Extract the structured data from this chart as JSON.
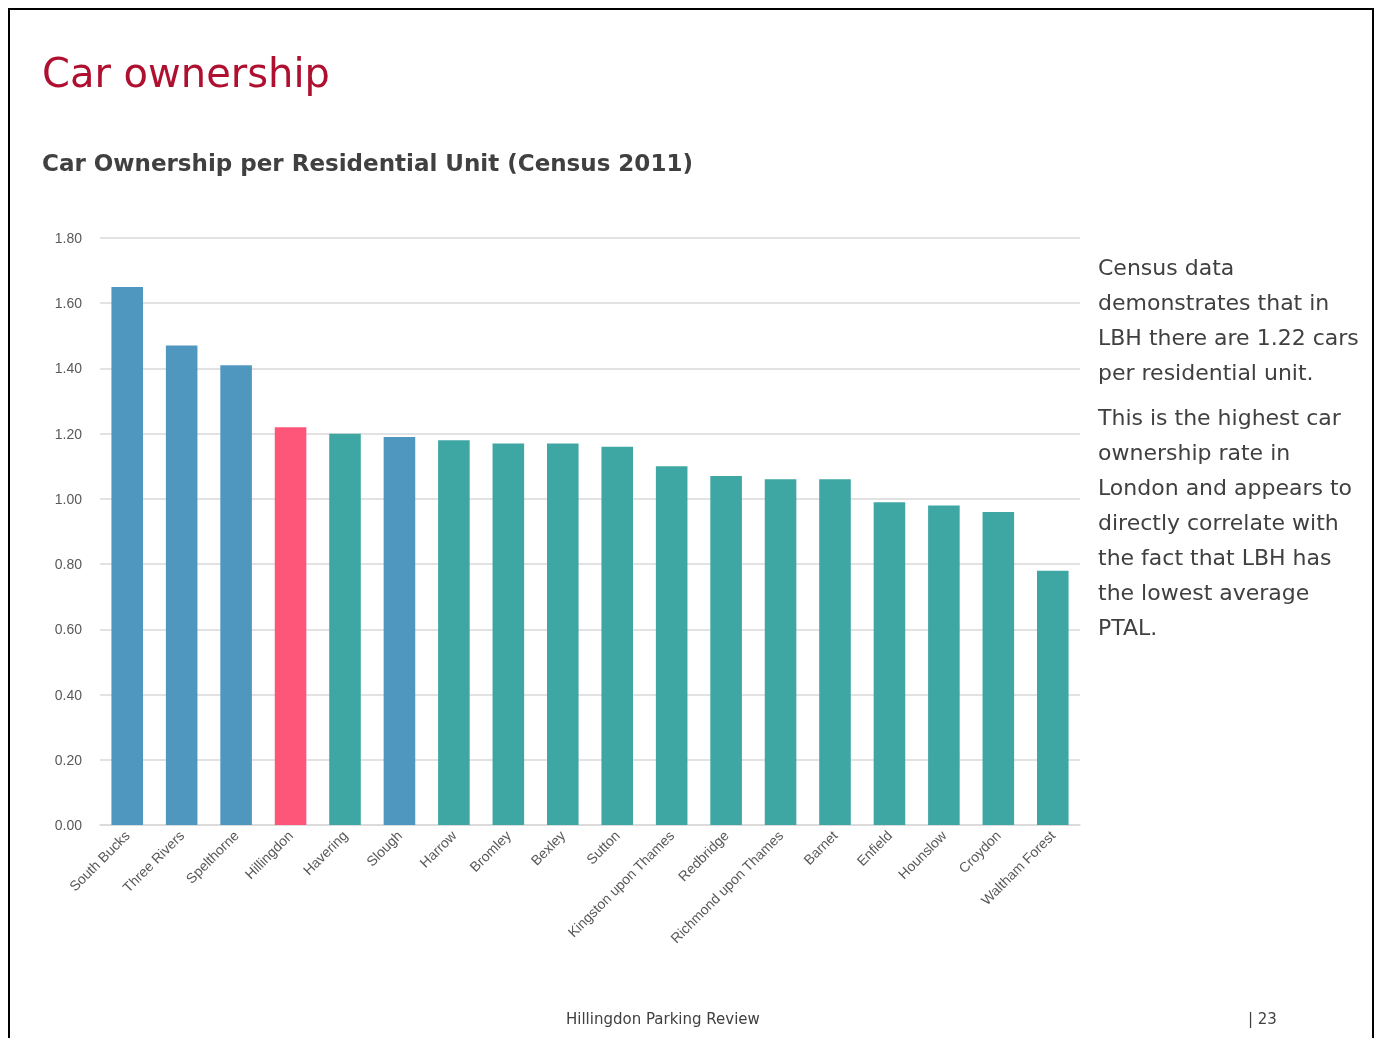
{
  "chart_data": {
    "type": "bar",
    "title": "Car ownership",
    "subtitle": "Car Ownership per Residential Unit (Census 2011)",
    "categories": [
      "South Bucks",
      "Three Rivers",
      "Spelthorne",
      "Hillingdon",
      "Havering",
      "Slough",
      "Harrow",
      "Bromley",
      "Bexley",
      "Sutton",
      "Kingston upon Thames",
      "Redbridge",
      "Richmond upon Thames",
      "Barnet",
      "Enfield",
      "Hounslow",
      "Croydon",
      "Waltham Forest"
    ],
    "values": [
      1.65,
      1.47,
      1.41,
      1.22,
      1.2,
      1.19,
      1.18,
      1.17,
      1.17,
      1.16,
      1.1,
      1.07,
      1.06,
      1.06,
      0.99,
      0.98,
      0.96,
      0.78
    ],
    "colors": [
      "#5097c0",
      "#5097c0",
      "#5097c0",
      "#fe5679",
      "#3ea7a3",
      "#5097c0",
      "#3ea7a3",
      "#3ea7a3",
      "#3ea7a3",
      "#3ea7a3",
      "#3ea7a3",
      "#3ea7a3",
      "#3ea7a3",
      "#3ea7a3",
      "#3ea7a3",
      "#3ea7a3",
      "#3ea7a3",
      "#3ea7a3"
    ],
    "ylim": [
      0,
      1.8
    ],
    "yticks": [
      {
        "value": 0,
        "label": "0.00"
      },
      {
        "value": 0.2,
        "label": "0.20"
      },
      {
        "value": 0.4,
        "label": "0.40"
      },
      {
        "value": 0.6,
        "label": "0.60"
      },
      {
        "value": 0.8,
        "label": "0.80"
      },
      {
        "value": 1.0,
        "label": "1.00"
      },
      {
        "value": 1.2,
        "label": "1.20"
      },
      {
        "value": 1.4,
        "label": "1.40"
      },
      {
        "value": 1.6,
        "label": "1.60"
      },
      {
        "value": 1.8,
        "label": "1.80"
      }
    ],
    "grid": "y",
    "annotations": [
      "Census data demonstrates that in LBH there are 1.22 cars per residential unit.",
      "This is the highest car ownership rate in London and appears to directly correlate with the fact that LBH has the lowest average PTAL.",
      "Hillingdon Parking Review",
      "| 23"
    ]
  }
}
